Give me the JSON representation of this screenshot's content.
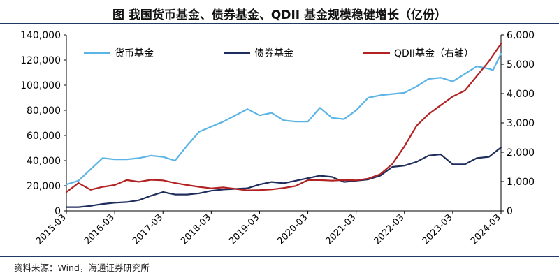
{
  "figure": {
    "title": "图 我国货币基金、债券基金、QDII 基金规模稳健增长（亿份）",
    "source": "资料来源：Wind，海通证券研究所"
  },
  "chart_data": {
    "type": "line",
    "x_ticks": [
      "2015-03",
      "2016-03",
      "2017-03",
      "2018-03",
      "2019-03",
      "2020-03",
      "2021-03",
      "2022-03",
      "2023-03",
      "2024-03"
    ],
    "x_start": "2015-03",
    "x_end": "2024-03",
    "y_left": {
      "min": 0,
      "max": 140000,
      "ticks": [
        0,
        20000,
        40000,
        60000,
        80000,
        100000,
        120000,
        140000
      ],
      "tick_labels": [
        "0",
        "20,000",
        "40,000",
        "60,000",
        "80,000",
        "100,000",
        "120,000",
        "140,000"
      ]
    },
    "y_right": {
      "min": 0,
      "max": 6000,
      "ticks": [
        0,
        1000,
        2000,
        3000,
        4000,
        5000,
        6000
      ],
      "tick_labels": [
        "0",
        "1,000",
        "2,000",
        "3,000",
        "4,000",
        "5,000",
        "6,000"
      ]
    },
    "grid": false,
    "legend_placement": "top",
    "series": [
      {
        "name": "货币基金",
        "axis": "left",
        "color": "#5ab4e5",
        "points": [
          [
            "2015-03",
            21000
          ],
          [
            "2015-06",
            24000
          ],
          [
            "2015-09",
            33000
          ],
          [
            "2015-12",
            42000
          ],
          [
            "2016-03",
            41000
          ],
          [
            "2016-06",
            41000
          ],
          [
            "2016-09",
            42000
          ],
          [
            "2016-12",
            44000
          ],
          [
            "2017-03",
            43000
          ],
          [
            "2017-06",
            40000
          ],
          [
            "2017-09",
            52000
          ],
          [
            "2017-12",
            63000
          ],
          [
            "2018-03",
            67000
          ],
          [
            "2018-06",
            71000
          ],
          [
            "2018-09",
            76000
          ],
          [
            "2018-12",
            81000
          ],
          [
            "2019-03",
            76000
          ],
          [
            "2019-06",
            78000
          ],
          [
            "2019-09",
            72000
          ],
          [
            "2019-12",
            71000
          ],
          [
            "2020-03",
            71000
          ],
          [
            "2020-06",
            82000
          ],
          [
            "2020-09",
            74000
          ],
          [
            "2020-12",
            73000
          ],
          [
            "2021-03",
            80000
          ],
          [
            "2021-06",
            90000
          ],
          [
            "2021-09",
            92000
          ],
          [
            "2021-12",
            93000
          ],
          [
            "2022-03",
            94000
          ],
          [
            "2022-06",
            99000
          ],
          [
            "2022-09",
            105000
          ],
          [
            "2022-12",
            106000
          ],
          [
            "2023-03",
            103000
          ],
          [
            "2023-06",
            109000
          ],
          [
            "2023-09",
            115000
          ],
          [
            "2023-12",
            113000
          ],
          [
            "2024-01",
            112000
          ],
          [
            "2024-03",
            125000
          ]
        ]
      },
      {
        "name": "债券基金",
        "axis": "left",
        "color": "#1f2d5c",
        "points": [
          [
            "2015-03",
            3000
          ],
          [
            "2015-06",
            3000
          ],
          [
            "2015-09",
            4000
          ],
          [
            "2015-12",
            5500
          ],
          [
            "2016-03",
            6500
          ],
          [
            "2016-06",
            7000
          ],
          [
            "2016-09",
            8500
          ],
          [
            "2016-12",
            12000
          ],
          [
            "2017-03",
            15000
          ],
          [
            "2017-06",
            13000
          ],
          [
            "2017-09",
            13000
          ],
          [
            "2017-12",
            14000
          ],
          [
            "2018-03",
            16000
          ],
          [
            "2018-06",
            17000
          ],
          [
            "2018-09",
            17500
          ],
          [
            "2018-12",
            18000
          ],
          [
            "2019-03",
            21000
          ],
          [
            "2019-06",
            23000
          ],
          [
            "2019-09",
            22000
          ],
          [
            "2019-12",
            24000
          ],
          [
            "2020-03",
            26000
          ],
          [
            "2020-06",
            28000
          ],
          [
            "2020-09",
            27000
          ],
          [
            "2020-12",
            23000
          ],
          [
            "2021-03",
            24000
          ],
          [
            "2021-06",
            25000
          ],
          [
            "2021-09",
            28000
          ],
          [
            "2021-12",
            35000
          ],
          [
            "2022-03",
            36000
          ],
          [
            "2022-06",
            39000
          ],
          [
            "2022-09",
            44000
          ],
          [
            "2022-12",
            45000
          ],
          [
            "2023-03",
            37000
          ],
          [
            "2023-06",
            37000
          ],
          [
            "2023-09",
            42000
          ],
          [
            "2023-12",
            43000
          ],
          [
            "2024-03",
            50500
          ]
        ]
      },
      {
        "name": "QDII基金（右轴）",
        "axis": "right",
        "color": "#b22222",
        "points": [
          [
            "2015-03",
            640
          ],
          [
            "2015-06",
            950
          ],
          [
            "2015-09",
            720
          ],
          [
            "2015-12",
            820
          ],
          [
            "2016-03",
            880
          ],
          [
            "2016-06",
            1050
          ],
          [
            "2016-09",
            990
          ],
          [
            "2016-12",
            1060
          ],
          [
            "2017-03",
            1040
          ],
          [
            "2017-06",
            950
          ],
          [
            "2017-09",
            880
          ],
          [
            "2017-12",
            820
          ],
          [
            "2018-03",
            770
          ],
          [
            "2018-06",
            800
          ],
          [
            "2018-09",
            750
          ],
          [
            "2018-12",
            700
          ],
          [
            "2019-03",
            710
          ],
          [
            "2019-06",
            730
          ],
          [
            "2019-09",
            780
          ],
          [
            "2019-12",
            850
          ],
          [
            "2020-03",
            1050
          ],
          [
            "2020-06",
            1050
          ],
          [
            "2020-09",
            1030
          ],
          [
            "2020-12",
            1050
          ],
          [
            "2021-03",
            1040
          ],
          [
            "2021-06",
            1100
          ],
          [
            "2021-09",
            1250
          ],
          [
            "2021-12",
            1600
          ],
          [
            "2022-03",
            2200
          ],
          [
            "2022-06",
            2900
          ],
          [
            "2022-09",
            3300
          ],
          [
            "2022-12",
            3600
          ],
          [
            "2023-03",
            3900
          ],
          [
            "2023-06",
            4100
          ],
          [
            "2023-09",
            4600
          ],
          [
            "2023-12",
            5100
          ],
          [
            "2024-03",
            5700
          ]
        ]
      }
    ]
  }
}
